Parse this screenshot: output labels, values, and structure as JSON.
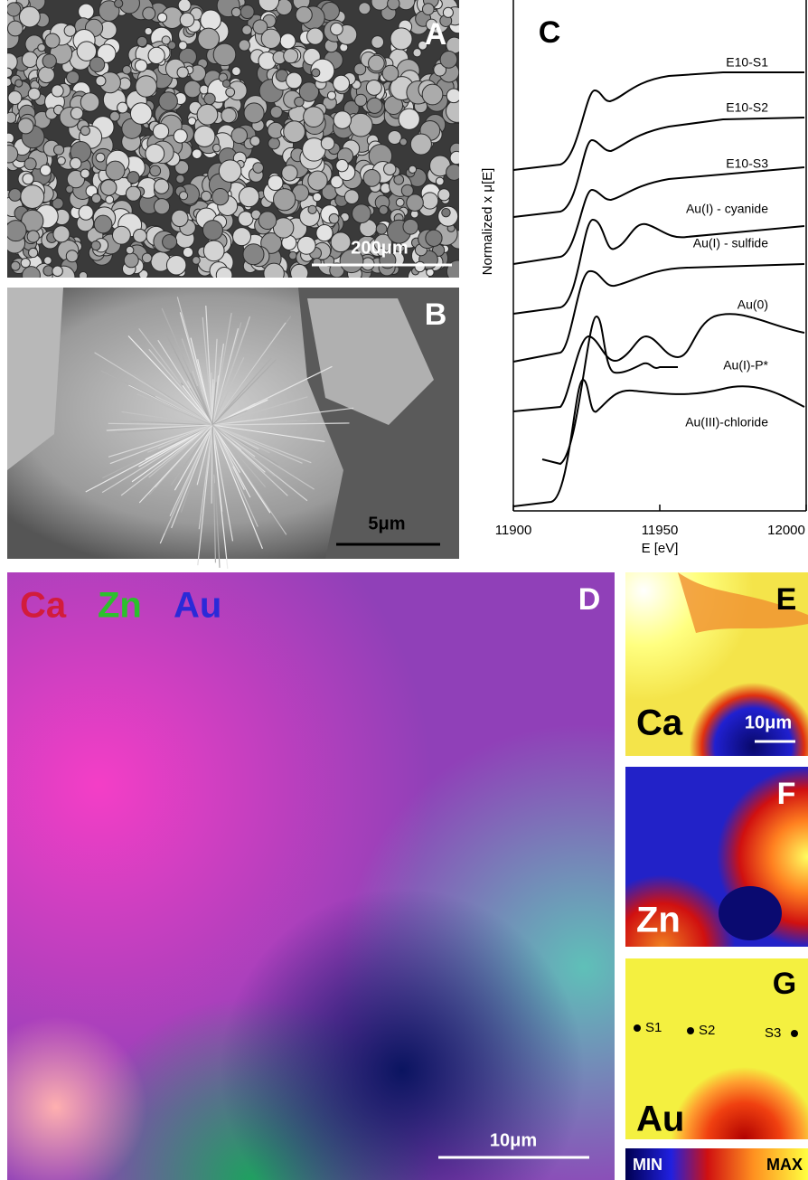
{
  "panels": {
    "a": {
      "label": "A",
      "scale_bar": "200μm"
    },
    "b": {
      "label": "B",
      "scale_bar": "5μm"
    },
    "c": {
      "label": "C",
      "xlabel": "E [eV]",
      "ylabel": "Normalized x μ[E]",
      "xticks": [
        11900,
        11950,
        12000
      ],
      "spectra": [
        "E10-S1",
        "E10-S2",
        "E10-S3",
        "Au(I) - cyanide",
        "Au(I) - sulfide",
        "Au(0)",
        "Au(I)-P*",
        "Au(III)-chloride"
      ]
    },
    "d": {
      "label": "D",
      "elements": [
        "Ca",
        "Zn",
        "Au"
      ],
      "scale_bar": "10μm"
    },
    "e": {
      "label": "E",
      "element": "Ca",
      "scale_bar": "10μm"
    },
    "f": {
      "label": "F",
      "element": "Zn"
    },
    "g": {
      "label": "G",
      "element": "Au",
      "sites": [
        "S1",
        "S2",
        "S3"
      ]
    },
    "colorbar": {
      "min_label": "MIN",
      "max_label": "MAX"
    }
  }
}
